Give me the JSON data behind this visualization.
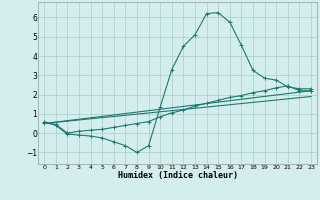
{
  "xlabel": "Humidex (Indice chaleur)",
  "bg_color": "#d4eeee",
  "grid_color": "#aacccc",
  "line_color": "#1e7870",
  "xlim": [
    -0.5,
    23.5
  ],
  "ylim": [
    -1.6,
    6.8
  ],
  "yticks": [
    -1,
    0,
    1,
    2,
    3,
    4,
    5,
    6
  ],
  "xticks": [
    0,
    1,
    2,
    3,
    4,
    5,
    6,
    7,
    8,
    9,
    10,
    11,
    12,
    13,
    14,
    15,
    16,
    17,
    18,
    19,
    20,
    21,
    22,
    23
  ],
  "line1_x": [
    0,
    1,
    2,
    3,
    4,
    5,
    6,
    7,
    8,
    9,
    10,
    11,
    12,
    13,
    14,
    15,
    16,
    17,
    18,
    19,
    20,
    21,
    22,
    23
  ],
  "line1_y": [
    0.6,
    0.4,
    -0.05,
    -0.1,
    -0.15,
    -0.25,
    -0.45,
    -0.65,
    -1.0,
    -0.65,
    1.35,
    3.3,
    4.5,
    5.1,
    6.2,
    6.25,
    5.75,
    4.55,
    3.25,
    2.85,
    2.75,
    2.4,
    2.3,
    2.3
  ],
  "line2_x": [
    0,
    1,
    2,
    3,
    4,
    5,
    6,
    7,
    8,
    9,
    10,
    11,
    12,
    13,
    14,
    15,
    16,
    17,
    18,
    19,
    20,
    21,
    22,
    23
  ],
  "line2_y": [
    0.55,
    0.45,
    0.0,
    0.1,
    0.15,
    0.2,
    0.3,
    0.4,
    0.5,
    0.6,
    0.85,
    1.05,
    1.2,
    1.4,
    1.55,
    1.7,
    1.85,
    1.95,
    2.1,
    2.2,
    2.35,
    2.45,
    2.2,
    2.2
  ],
  "line3_x": [
    0,
    23
  ],
  "line3_y": [
    0.5,
    2.2
  ],
  "line4_x": [
    0,
    23
  ],
  "line4_y": [
    0.5,
    1.9
  ]
}
